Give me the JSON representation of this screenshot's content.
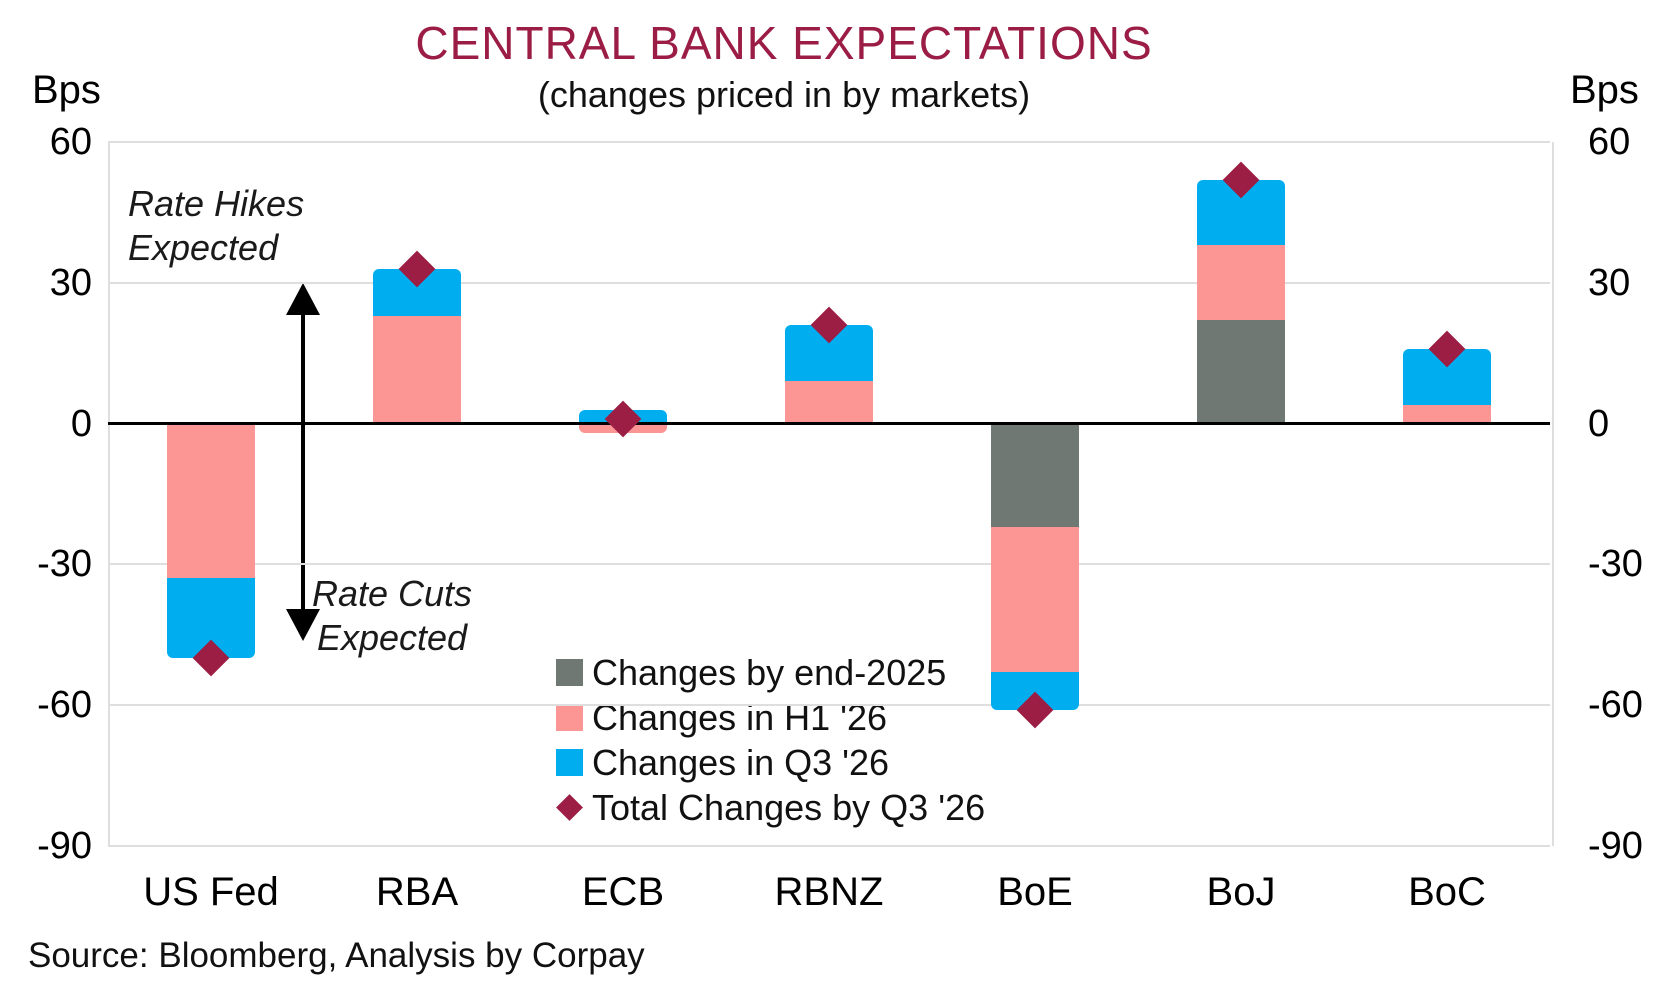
{
  "title": "CENTRAL BANK EXPECTATIONS",
  "subtitle": "(changes priced in by markets)",
  "axis": {
    "unit_left": "Bps",
    "unit_right": "Bps"
  },
  "annotations": {
    "rate_hikes_line1": "Rate Hikes",
    "rate_hikes_line2": "Expected",
    "rate_cuts_line1": "Rate Cuts",
    "rate_cuts_line2": "Expected"
  },
  "legend": {
    "items": [
      {
        "label": "Changes by end-2025",
        "color_key": "end_2025",
        "shape": "square"
      },
      {
        "label": "Changes in H1 '26",
        "color_key": "h1_26",
        "shape": "square"
      },
      {
        "label": "Changes in Q3 '26",
        "color_key": "q3_26",
        "shape": "square"
      },
      {
        "label": "Total Changes by Q3 '26",
        "color_key": "total_diamond",
        "shape": "diamond"
      }
    ]
  },
  "source": "Source: Bloomberg, Analysis by Corpay",
  "colors": {
    "title": "#9B1C45",
    "end_2025": "#6F7873",
    "h1_26": "#FB9694",
    "q3_26": "#00AEEF",
    "total_diamond": "#9C1E45",
    "gridline": "#DEDEDE",
    "axis_line": "#000000"
  },
  "chart_data": {
    "type": "bar",
    "stacked": true,
    "title": "CENTRAL BANK EXPECTATIONS",
    "subtitle": "(changes priced in by markets)",
    "ylabel": "Bps",
    "ylim": [
      -90,
      60
    ],
    "yticks": [
      60,
      30,
      0,
      -30,
      -60,
      -90
    ],
    "grid": "horizontal",
    "legend_position": "inside lower-center",
    "categories": [
      "US Fed",
      "RBA",
      "ECB",
      "RBNZ",
      "BoE",
      "BoJ",
      "BoC"
    ],
    "series": [
      {
        "name": "Changes by end-2025",
        "color_key": "end_2025",
        "values": [
          0,
          0,
          0,
          0,
          -22,
          22,
          0
        ]
      },
      {
        "name": "Changes in H1 '26",
        "color_key": "h1_26",
        "values": [
          -33,
          23,
          -2,
          9,
          -31,
          16,
          4
        ]
      },
      {
        "name": "Changes in Q3 '26",
        "color_key": "q3_26",
        "values": [
          -17,
          10,
          3,
          12,
          -8,
          14,
          12
        ]
      }
    ],
    "markers": {
      "name": "Total Changes by Q3 '26",
      "color_key": "total_diamond",
      "shape": "diamond",
      "values": [
        -50,
        33,
        1,
        21,
        -61,
        52,
        16
      ]
    },
    "annotations": [
      "Rate Hikes Expected (up arrow)",
      "Rate Cuts Expected (down arrow)"
    ]
  }
}
